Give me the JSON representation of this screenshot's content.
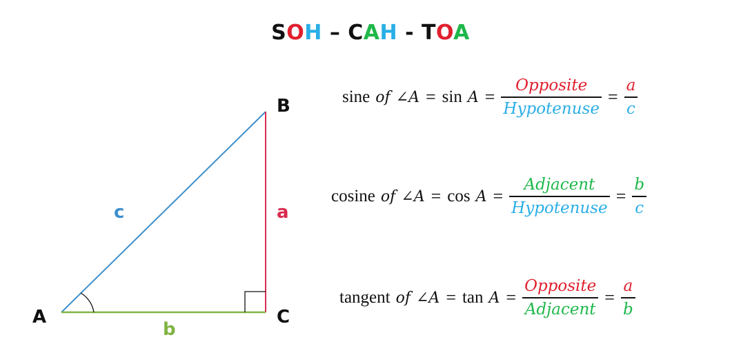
{
  "mnemonic": {
    "parts": [
      {
        "text": "S",
        "color": "#111111"
      },
      {
        "text": "O",
        "color": "#e0202e"
      },
      {
        "text": "H",
        "color": "#29aee6"
      },
      {
        "text": " – ",
        "color": "#111111"
      },
      {
        "text": "C",
        "color": "#111111"
      },
      {
        "text": "A",
        "color": "#1fb84a"
      },
      {
        "text": "H",
        "color": "#29aee6"
      },
      {
        "text": " - ",
        "color": "#111111"
      },
      {
        "text": "T",
        "color": "#111111"
      },
      {
        "text": "O",
        "color": "#e0202e"
      },
      {
        "text": "A",
        "color": "#1fb84a"
      }
    ]
  },
  "triangle": {
    "vertices": {
      "a": "A",
      "b": "B",
      "c": "C"
    },
    "sides": {
      "hypotenuse": {
        "label": "c",
        "color": "#3d8fcc"
      },
      "opposite": {
        "label": "a",
        "color": "#d92b4e"
      },
      "adjacent": {
        "label": "b",
        "color": "#7fb342"
      }
    },
    "angle_color": "#111111",
    "right_angle_color": "#111111"
  },
  "colors": {
    "opposite": "#e0202e",
    "hypotenuse": "#29aee6",
    "adjacent": "#1fb84a"
  },
  "formulas": [
    {
      "name_word": "sine",
      "of_word": "of",
      "angle": "∠A",
      "func": "sin",
      "func_arg": "A",
      "equals": "=",
      "ratio_num": "Opposite",
      "ratio_den": "Hypotenuse",
      "num_color": "#e0202e",
      "den_color": "#29aee6",
      "short_num": "a",
      "short_den": "c"
    },
    {
      "name_word": "cosine",
      "of_word": "of",
      "angle": "∠A",
      "func": "cos",
      "func_arg": "A",
      "equals": "=",
      "ratio_num": "Adjacent",
      "ratio_den": "Hypotenuse",
      "num_color": "#1fb84a",
      "den_color": "#29aee6",
      "short_num": "b",
      "short_den": "c"
    },
    {
      "name_word": "tangent",
      "of_word": "of",
      "angle": "∠A",
      "func": "tan",
      "func_arg": "A",
      "equals": "=",
      "ratio_num": "Opposite",
      "ratio_den": "Adjacent",
      "num_color": "#e0202e",
      "den_color": "#1fb84a",
      "short_num": "a",
      "short_den": "b"
    }
  ]
}
